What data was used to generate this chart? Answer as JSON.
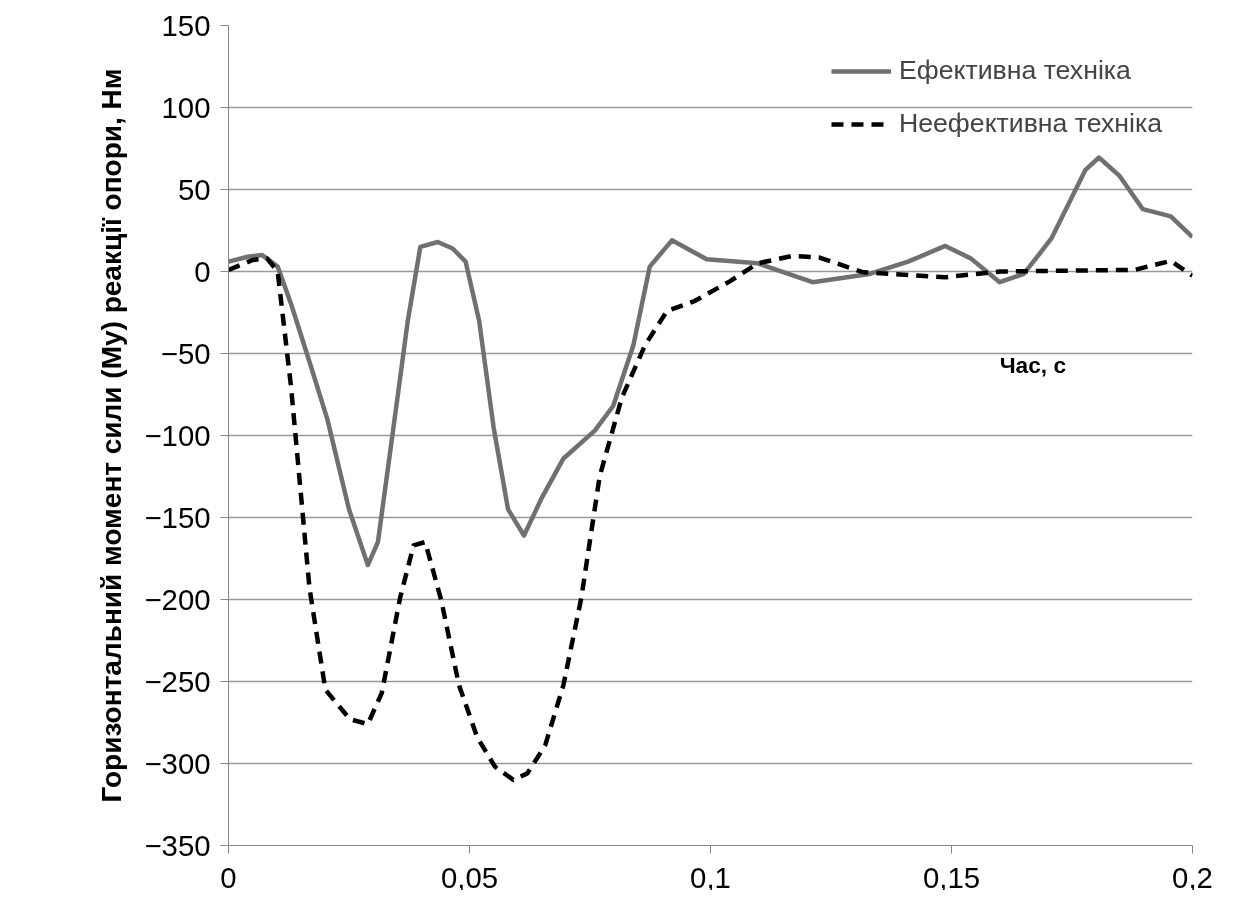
{
  "chart_data": {
    "type": "line",
    "xlabel": "Час, с",
    "ylabel": "Горизонтальний момент сили (My) реакції опори, Нм",
    "xlim": [
      0,
      0.2
    ],
    "ylim": [
      -350,
      150
    ],
    "xticks": [
      0,
      {
        "value": 0.05,
        "label": "0,05"
      },
      {
        "value": 0.1,
        "label": "0,1"
      },
      {
        "value": 0.15,
        "label": "0,15"
      },
      {
        "value": 0.2,
        "label": "0,2"
      }
    ],
    "yticks": [
      -350,
      -300,
      -250,
      -200,
      -150,
      -100,
      -50,
      0,
      50,
      100,
      150
    ],
    "grid": "y",
    "legend": "top right",
    "marker": "none",
    "series": [
      {
        "name": "Ефективна техніка",
        "color": "#707070",
        "line_style": "solid",
        "x": [
          0,
          0.004,
          0.007,
          0.0102,
          0.013,
          0.0168,
          0.0205,
          0.025,
          0.0289,
          0.031,
          0.034,
          0.0372,
          0.0398,
          0.0434,
          0.0465,
          0.0492,
          0.052,
          0.055,
          0.058,
          0.0613,
          0.065,
          0.0695,
          0.076,
          0.0798,
          0.084,
          0.0874,
          0.092,
          0.0992,
          0.1098,
          0.1212,
          0.133,
          0.141,
          0.1487,
          0.154,
          0.16,
          0.165,
          0.1707,
          0.1778,
          0.1806,
          0.1848,
          0.1897,
          0.1955,
          0.2
        ],
        "values": [
          6,
          9,
          10,
          3,
          -20,
          -55,
          -90,
          -145,
          -179,
          -165,
          -100,
          -30,
          15,
          18,
          14,
          6,
          -30,
          -95,
          -145,
          -161,
          -138,
          -114,
          -97,
          -82,
          -45,
          3,
          19,
          7.5,
          5,
          -6.5,
          -1.5,
          6,
          15.6,
          8,
          -6.5,
          -1.5,
          20,
          62,
          69.5,
          58.5,
          38,
          33.6,
          21
        ]
      },
      {
        "name": "Неефективна техніка",
        "color": "#000000",
        "line_style": "dashed",
        "x": [
          0,
          0.005,
          0.008,
          0.0102,
          0.013,
          0.0168,
          0.0201,
          0.0252,
          0.0289,
          0.0318,
          0.0356,
          0.0384,
          0.0408,
          0.0441,
          0.0478,
          0.0516,
          0.0553,
          0.0591,
          0.062,
          0.0657,
          0.0695,
          0.0732,
          0.077,
          0.0816,
          0.0864,
          0.091,
          0.0967,
          0.104,
          0.1098,
          0.117,
          0.1226,
          0.1317,
          0.1487,
          0.16,
          0.188,
          0.1955,
          0.2
        ],
        "values": [
          1,
          7,
          8,
          0,
          -71,
          -193,
          -255,
          -273,
          -276,
          -257,
          -199,
          -167,
          -165,
          -200,
          -252,
          -284,
          -302,
          -310,
          -306,
          -289,
          -252,
          -199,
          -125,
          -77,
          -45,
          -24,
          -18,
          -6,
          5,
          9.5,
          8.5,
          -0.5,
          -3.5,
          0,
          1,
          6.5,
          -2.5
        ]
      }
    ]
  }
}
